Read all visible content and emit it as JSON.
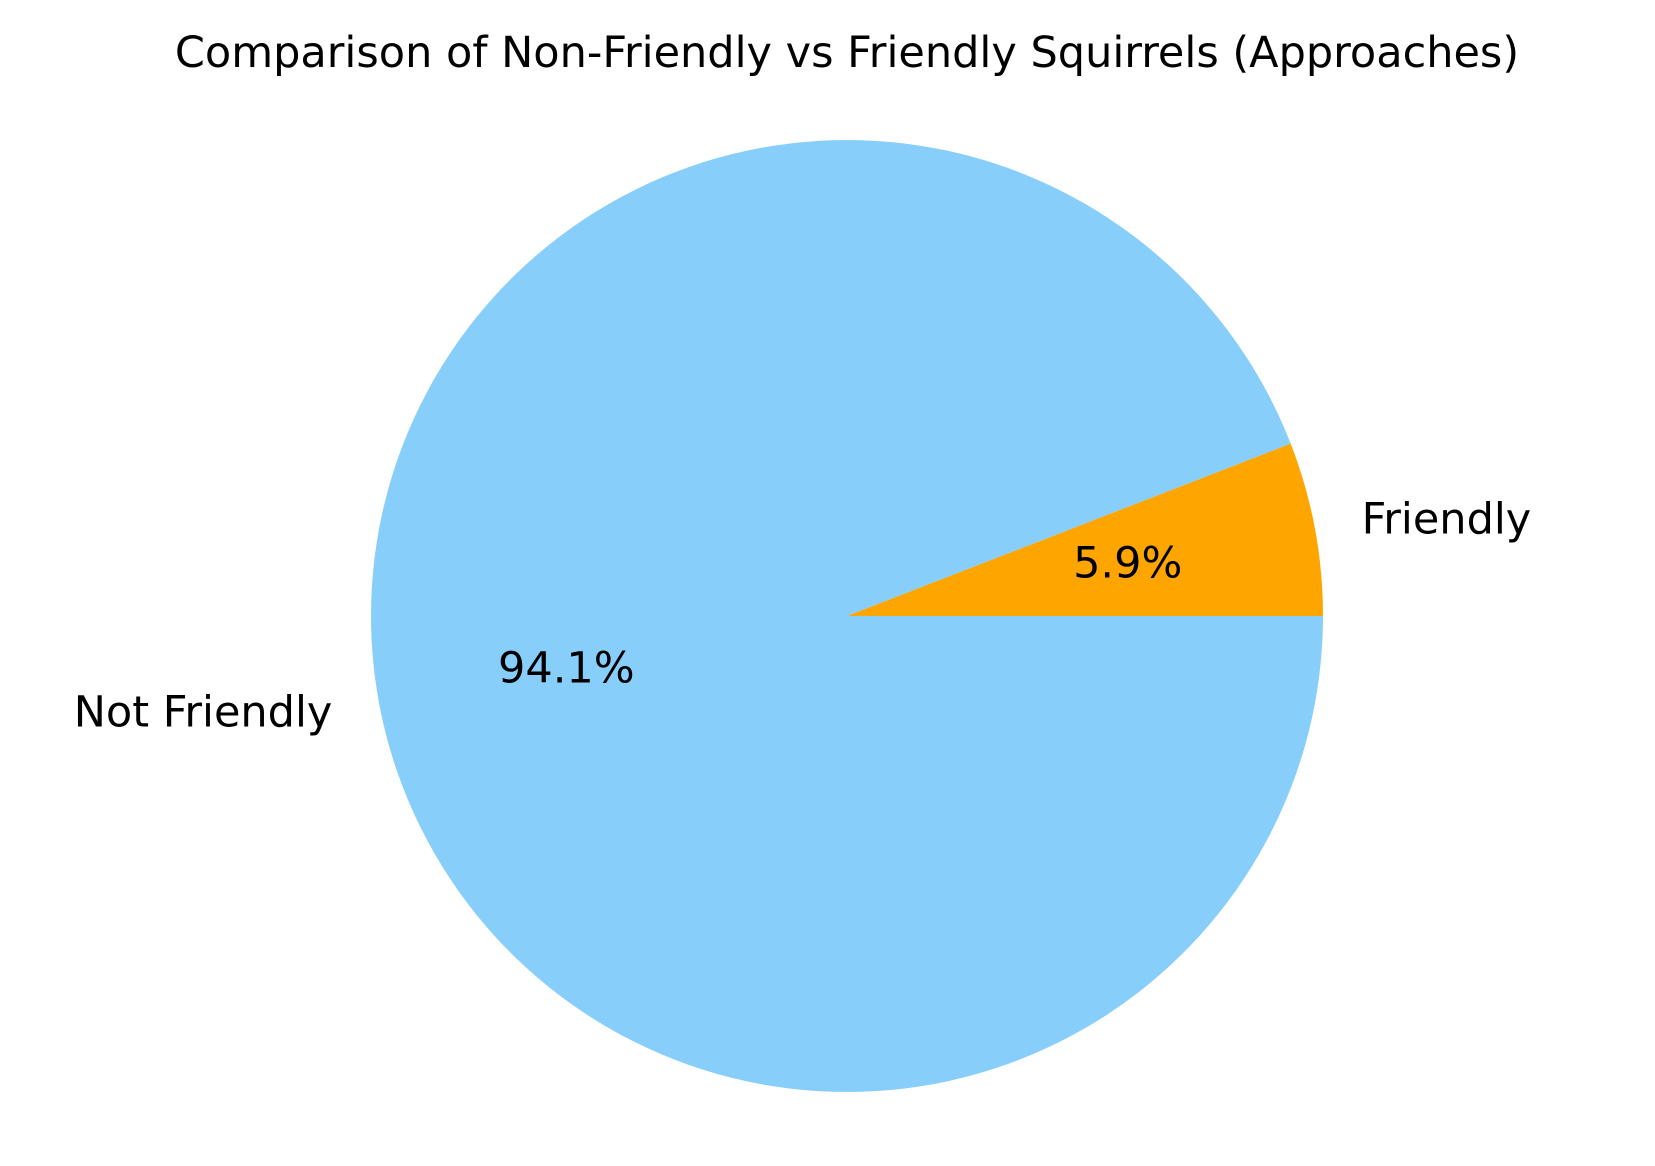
{
  "chart_data": {
    "type": "pie",
    "title": "Comparison of Non-Friendly vs Friendly Squirrels (Approaches)",
    "slices": [
      {
        "label": "Friendly",
        "value": 5.9,
        "pct_label": "5.9%",
        "color": "#FFA500"
      },
      {
        "label": "Not Friendly",
        "value": 94.1,
        "pct_label": "94.1%",
        "color": "#87CEFA"
      }
    ],
    "start_angle_deg": 0,
    "direction": "counterclockwise",
    "legend": "none"
  }
}
